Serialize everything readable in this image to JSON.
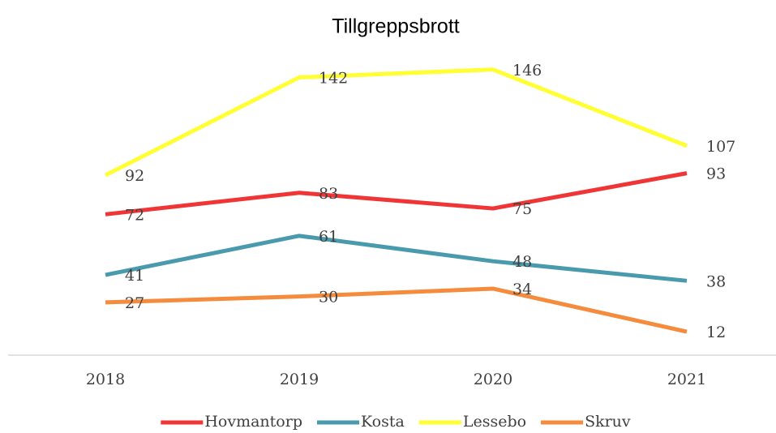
{
  "chart_data": {
    "type": "line",
    "title": "Tillgreppsbrott",
    "categories": [
      "2018",
      "2019",
      "2020",
      "2021"
    ],
    "series": [
      {
        "name": "Hovmantorp",
        "color": "#ef3535",
        "values": [
          72,
          83,
          75,
          93
        ]
      },
      {
        "name": "Kosta",
        "color": "#4a9aad",
        "values": [
          41,
          61,
          48,
          38
        ]
      },
      {
        "name": "Lessebo",
        "color": "#ffff33",
        "values": [
          92,
          142,
          146,
          107
        ]
      },
      {
        "name": "Skruv",
        "color": "#f58b3c",
        "values": [
          27,
          30,
          34,
          12
        ]
      }
    ],
    "ylim": [
      0,
      160
    ],
    "grid": false,
    "legend": "bottom"
  }
}
